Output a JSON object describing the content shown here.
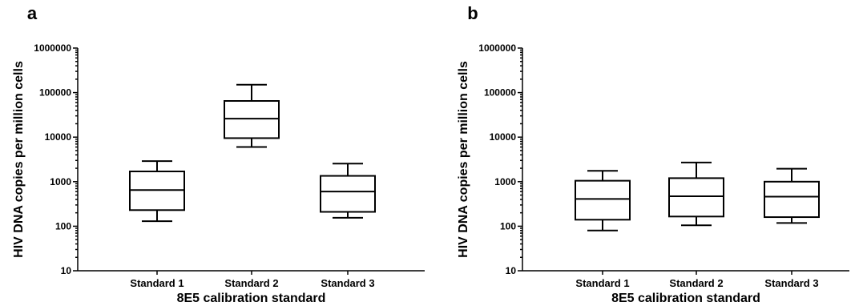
{
  "chart_data": [
    {
      "type": "box",
      "panel_label": "a",
      "xlabel": "8E5 calibration standard",
      "ylabel": "HIV DNA copies per million cells",
      "yscale": "log",
      "ylim": [
        10,
        1000000
      ],
      "yticks": [
        "10",
        "100",
        "1000",
        "10000",
        "100000",
        "1000000"
      ],
      "categories": [
        "Standard 1",
        "Standard 2",
        "Standard 3"
      ],
      "boxes": [
        {
          "min": 130,
          "q1": 230,
          "median": 650,
          "q3": 1700,
          "max": 2900
        },
        {
          "min": 6000,
          "q1": 9500,
          "median": 26000,
          "q3": 65000,
          "max": 150000
        },
        {
          "min": 155,
          "q1": 210,
          "median": 600,
          "q3": 1350,
          "max": 2550
        }
      ]
    },
    {
      "type": "box",
      "panel_label": "b",
      "xlabel": "8E5 calibration standard",
      "ylabel": "HIV DNA copies per million cells",
      "yscale": "log",
      "ylim": [
        10,
        1000000
      ],
      "yticks": [
        "10",
        "100",
        "1000",
        "10000",
        "100000",
        "1000000"
      ],
      "categories": [
        "Standard 1",
        "Standard 2",
        "Standard 3"
      ],
      "boxes": [
        {
          "min": 80,
          "q1": 140,
          "median": 410,
          "q3": 1050,
          "max": 1750
        },
        {
          "min": 105,
          "q1": 165,
          "median": 470,
          "q3": 1200,
          "max": 2700
        },
        {
          "min": 118,
          "q1": 160,
          "median": 460,
          "q3": 1000,
          "max": 1950
        }
      ]
    }
  ]
}
